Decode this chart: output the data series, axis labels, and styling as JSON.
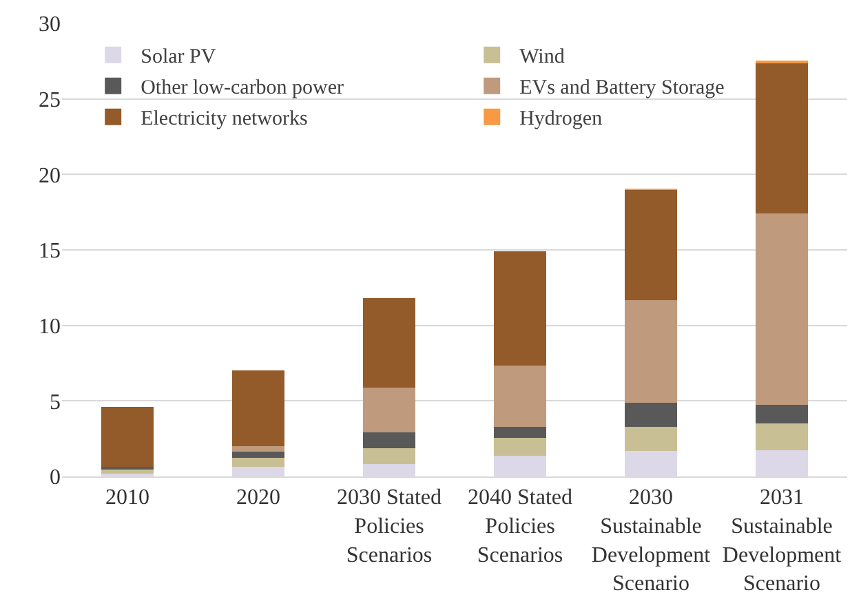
{
  "chart_data": {
    "type": "bar",
    "stacked": true,
    "categories": [
      "2010",
      "2020",
      "2030 Stated Policies Scenarios",
      "2040 Stated Policies Scenarios",
      "2030 Sustainable Development Scenario",
      "2031 Sustainable Development Scenario"
    ],
    "series": [
      {
        "name": "Solar PV",
        "color": "#dcd8e8",
        "values": [
          0.2,
          0.64,
          0.83,
          1.37,
          1.7,
          1.75
        ]
      },
      {
        "name": "Wind",
        "color": "#c8bf94",
        "values": [
          0.25,
          0.6,
          1.05,
          1.18,
          1.6,
          1.75
        ]
      },
      {
        "name": "Other low-carbon power",
        "color": "#595959",
        "values": [
          0.2,
          0.38,
          1.02,
          0.73,
          1.58,
          1.25
        ]
      },
      {
        "name": "EVs and Battery Storage",
        "color": "#bf9a7c",
        "values": [
          null,
          0.4,
          3.0,
          4.05,
          6.8,
          12.65
        ]
      },
      {
        "name": "Electricity networks",
        "color": "#935a2a",
        "values": [
          3.95,
          5.0,
          5.9,
          7.6,
          7.3,
          10.0
        ]
      },
      {
        "name": "Hydrogen",
        "color": "#f79a43",
        "values": [
          0,
          0,
          0,
          0,
          0.05,
          0.05
        ]
      }
    ],
    "ylim": [
      0,
      30
    ],
    "yticks": [
      0,
      5,
      10,
      15,
      20,
      25,
      30
    ],
    "grid": "y",
    "legend": "top left"
  }
}
